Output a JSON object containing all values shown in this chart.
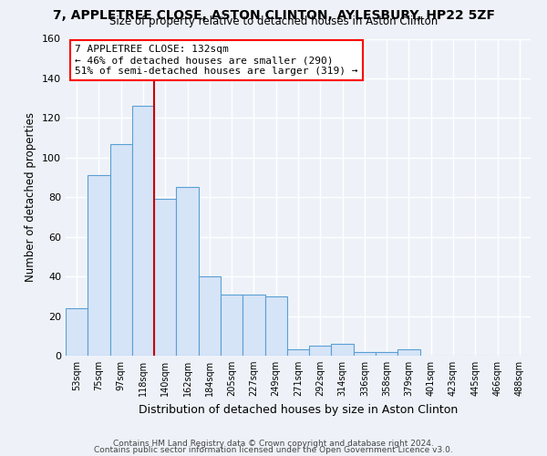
{
  "title1": "7, APPLETREE CLOSE, ASTON CLINTON, AYLESBURY, HP22 5ZF",
  "title2": "Size of property relative to detached houses in Aston Clinton",
  "xlabel": "Distribution of detached houses by size in Aston Clinton",
  "ylabel": "Number of detached properties",
  "bar_labels": [
    "53sqm",
    "75sqm",
    "97sqm",
    "118sqm",
    "140sqm",
    "162sqm",
    "184sqm",
    "205sqm",
    "227sqm",
    "249sqm",
    "271sqm",
    "292sqm",
    "314sqm",
    "336sqm",
    "358sqm",
    "379sqm",
    "401sqm",
    "423sqm",
    "445sqm",
    "466sqm",
    "488sqm"
  ],
  "bar_values": [
    24,
    91,
    107,
    126,
    79,
    85,
    40,
    31,
    31,
    30,
    3,
    5,
    6,
    2,
    2,
    3,
    0,
    0,
    0,
    0,
    0
  ],
  "bar_color": "#d6e4f7",
  "bar_edgecolor": "#5a9fd4",
  "redline_color": "#cc0000",
  "annotation_title": "7 APPLETREE CLOSE: 132sqm",
  "annotation_line1": "← 46% of detached houses are smaller (290)",
  "annotation_line2": "51% of semi-detached houses are larger (319) →",
  "footer1": "Contains HM Land Registry data © Crown copyright and database right 2024.",
  "footer2": "Contains public sector information licensed under the Open Government Licence v3.0.",
  "ylim": [
    0,
    160
  ],
  "background_color": "#eef2f8"
}
